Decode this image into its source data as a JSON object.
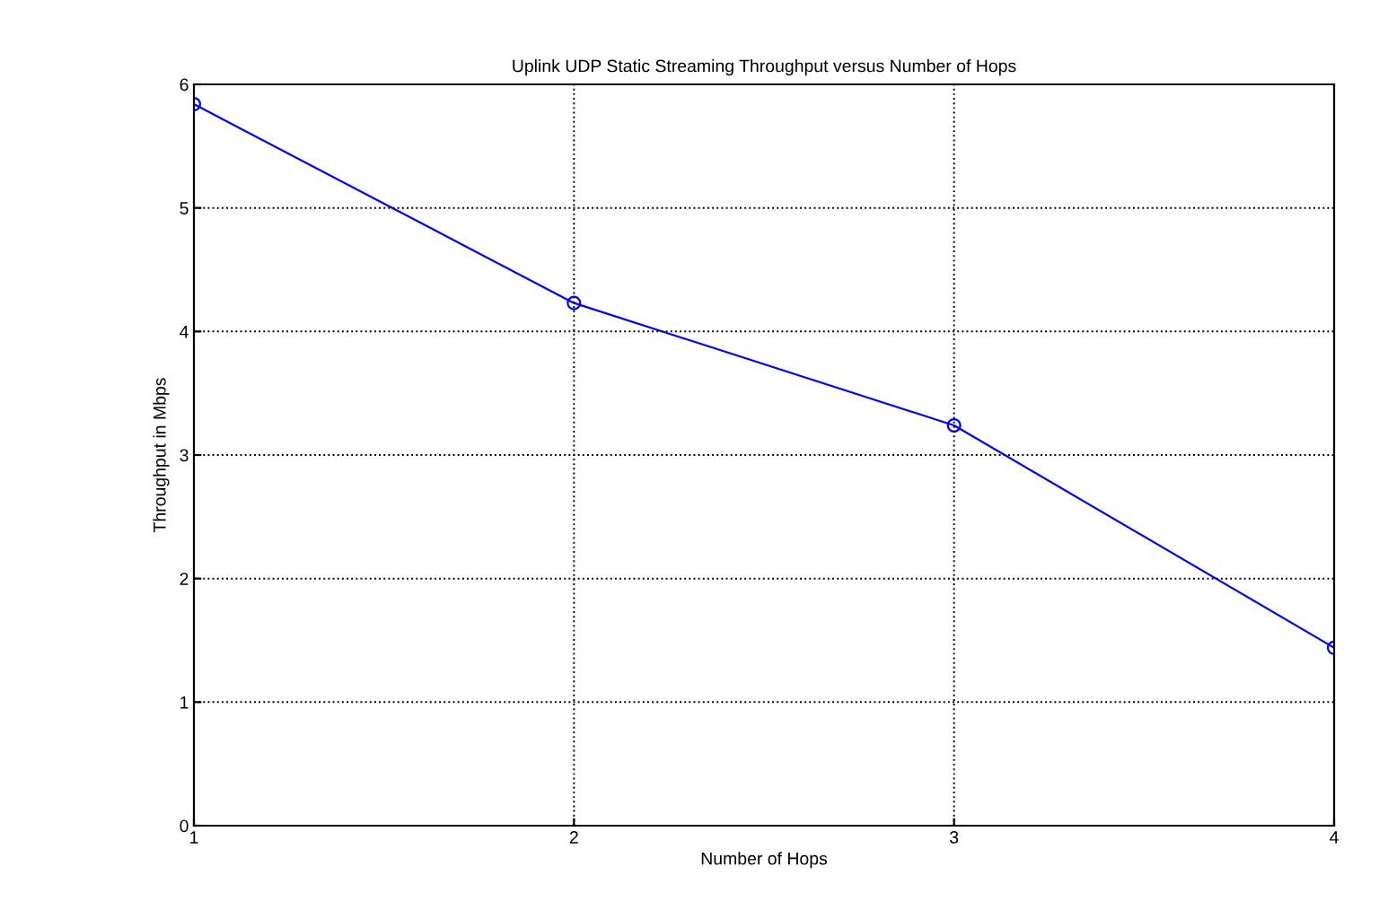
{
  "chart_data": {
    "type": "line",
    "title": "Uplink UDP Static Streaming Throughput versus Number of Hops",
    "xlabel": "Number of Hops",
    "ylabel": "Throughput in Mbps",
    "x": [
      1,
      2,
      3,
      4
    ],
    "series": [
      {
        "color": "#0000ff",
        "values": [
          5.84,
          4.23,
          3.24,
          1.44
        ]
      }
    ],
    "xlim": [
      1,
      4
    ],
    "xticks": [
      1,
      2,
      3,
      4
    ],
    "ylim": [
      0,
      6
    ],
    "yticks": [
      0,
      1,
      2,
      3,
      4,
      5,
      6
    ],
    "grid": true,
    "marker": "circle",
    "line_style": "solid"
  }
}
